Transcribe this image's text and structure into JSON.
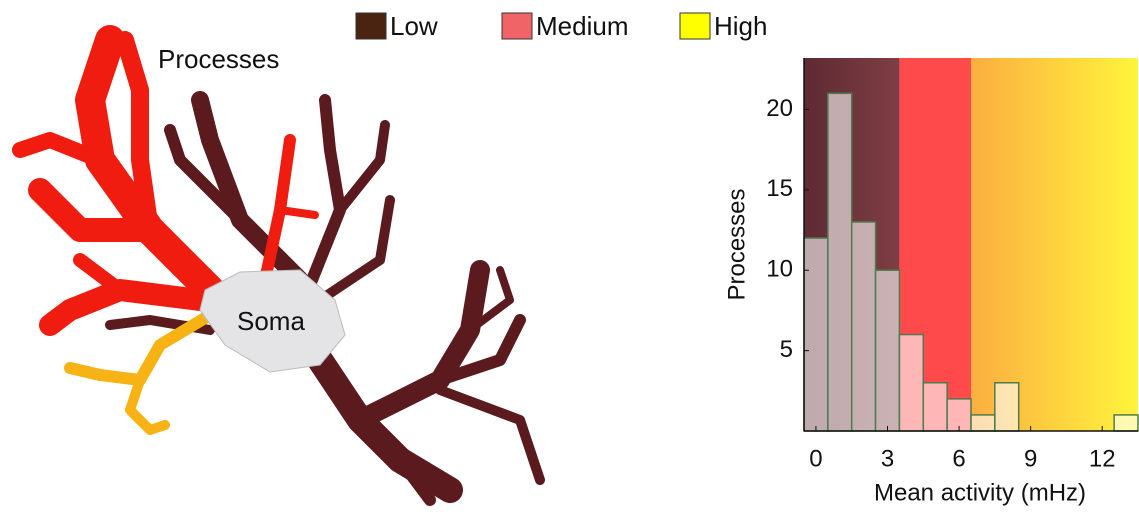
{
  "image_labels": {
    "processes": "Processes",
    "soma": "Soma"
  },
  "chart_data": {
    "type": "histogram",
    "xlabel": "Mean activity (mHz)",
    "ylabel": "Processes",
    "bins": [
      -0.5,
      0.5,
      1.5,
      2.5,
      3.5,
      4.5,
      5.5,
      6.5,
      7.5,
      8.5,
      9.5,
      10.5,
      11.5,
      12.5,
      13.5
    ],
    "values": [
      12,
      21,
      13,
      10,
      6,
      3,
      2,
      1,
      3,
      0,
      0,
      0,
      0,
      1
    ],
    "bar_color": "#ffffff",
    "bar_edge_color": "#4f7a4f",
    "xlim": [
      -0.5,
      13.5
    ],
    "ylim": [
      0,
      23.2
    ],
    "xticks": [
      0,
      3,
      6,
      9,
      12
    ],
    "yticks": [
      5,
      10,
      15,
      20
    ],
    "regions": [
      {
        "name": "Low",
        "from": -0.5,
        "to": 3.5,
        "color": "#4a2410",
        "fill": [
          "#5e2a34",
          "#7e3e44"
        ]
      },
      {
        "name": "Medium",
        "from": 3.5,
        "to": 6.5,
        "color": "#f06468",
        "fill": [
          "#ff4a4c",
          "#ff4a4c"
        ]
      },
      {
        "name": "High",
        "from": 6.5,
        "to": 13.5,
        "color": "#ffff00",
        "fill": [
          "#fbae40",
          "#fff43c"
        ]
      }
    ]
  }
}
